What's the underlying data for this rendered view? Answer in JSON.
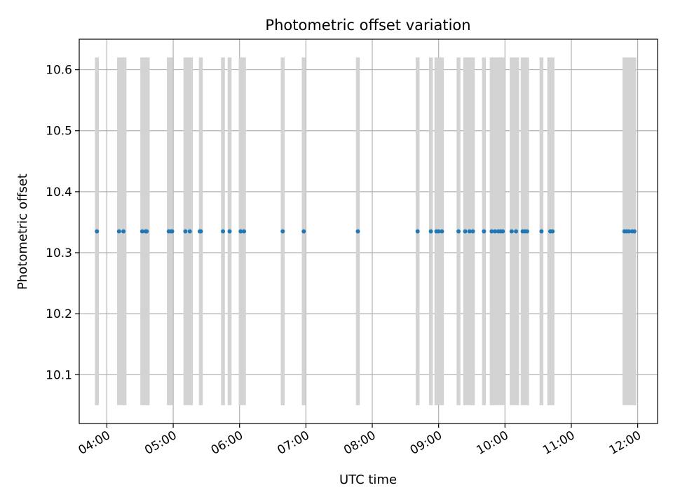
{
  "chart_data": {
    "type": "scatter",
    "title": "Photometric offset variation",
    "xlabel": "UTC time",
    "ylabel": "Photometric offset",
    "x_tick_labels": [
      "04:00",
      "05:00",
      "06:00",
      "07:00",
      "08:00",
      "09:00",
      "10:00",
      "11:00",
      "12:00"
    ],
    "x_ticks_hours": [
      4,
      5,
      6,
      7,
      8,
      9,
      10,
      11,
      12
    ],
    "y_tick_labels": [
      "10.1",
      "10.2",
      "10.3",
      "10.4",
      "10.5",
      "10.6"
    ],
    "y_ticks": [
      10.1,
      10.2,
      10.3,
      10.4,
      10.5,
      10.6
    ],
    "xlim": [
      "03:35",
      "12:18"
    ],
    "ylim": [
      10.02,
      10.65
    ],
    "grid": true,
    "colors": {
      "points": "#1f77b4",
      "bands": "#d3d3d3",
      "grid": "#b0b0b0",
      "axes": "#000000"
    },
    "bands": {
      "y_range": [
        10.05,
        10.62
      ],
      "x": [
        "03:51",
        "04:11",
        "04:14",
        "04:16",
        "04:32",
        "04:35",
        "04:37",
        "04:56",
        "04:58",
        "05:11",
        "05:13",
        "05:16",
        "05:25",
        "05:45",
        "05:51",
        "06:01",
        "06:04",
        "06:39",
        "06:58",
        "07:47",
        "08:41",
        "08:53",
        "08:58",
        "09:00",
        "09:03",
        "09:18",
        "09:24",
        "09:26",
        "09:28",
        "09:31",
        "09:41",
        "09:48",
        "09:50",
        "09:52",
        "09:54",
        "09:56",
        "09:58",
        "10:06",
        "10:08",
        "10:11",
        "10:16",
        "10:18",
        "10:20",
        "10:33",
        "10:40",
        "10:43",
        "11:48",
        "11:50",
        "11:52",
        "11:55",
        "11:57"
      ]
    },
    "points": {
      "y": 10.335,
      "x": [
        "03:51",
        "04:11",
        "04:15",
        "04:32",
        "04:35",
        "04:36",
        "04:56",
        "04:58",
        "04:59",
        "05:11",
        "05:15",
        "05:24",
        "05:25",
        "05:45",
        "05:51",
        "06:01",
        "06:04",
        "06:39",
        "06:58",
        "07:47",
        "08:41",
        "08:53",
        "08:58",
        "09:00",
        "09:03",
        "09:18",
        "09:24",
        "09:28",
        "09:31",
        "09:41",
        "09:48",
        "09:51",
        "09:54",
        "09:56",
        "09:58",
        "10:06",
        "10:10",
        "10:16",
        "10:18",
        "10:20",
        "10:33",
        "10:41",
        "10:43",
        "11:48",
        "11:50",
        "11:52",
        "11:55",
        "11:57"
      ]
    }
  }
}
